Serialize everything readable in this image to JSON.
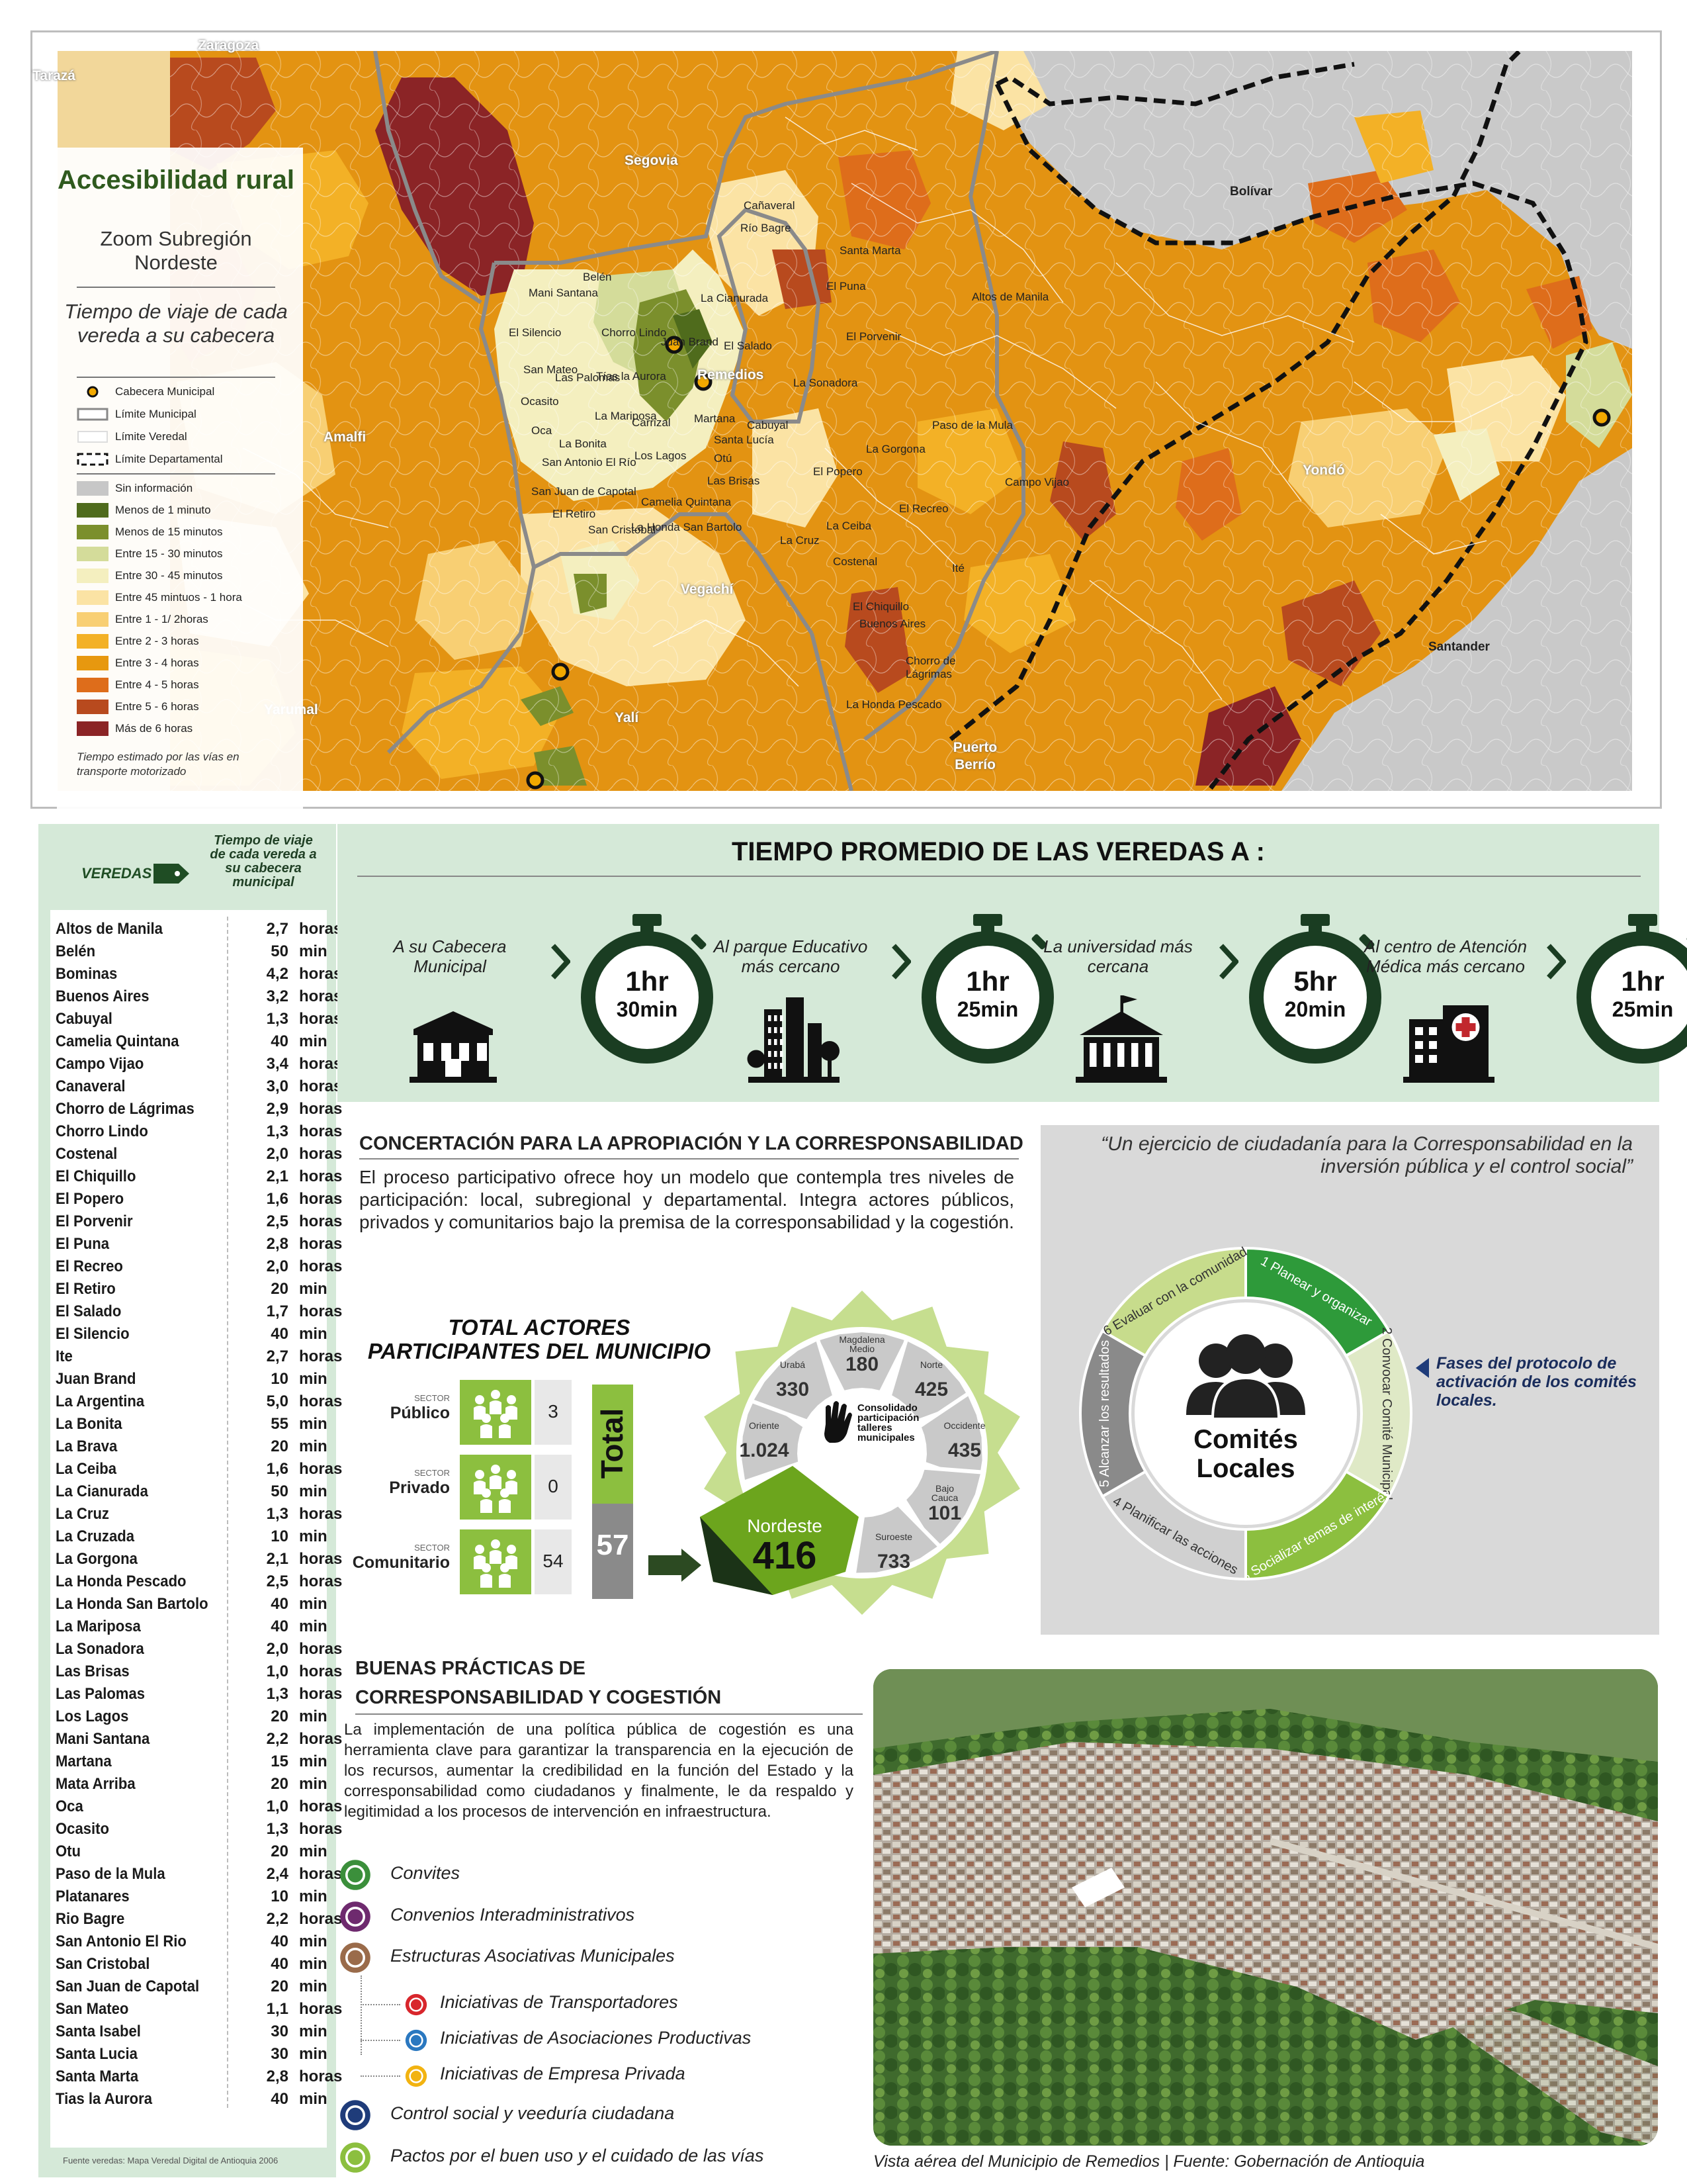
{
  "map": {
    "title": "Accesibilidad rural",
    "subtitle": "Zoom Subregión Nordeste",
    "legend_title": "Tiempo de viaje de cada vereda a su cabecera",
    "symbols": [
      {
        "icon": "cabecera-icon",
        "label": "Cabecera Municipal"
      },
      {
        "icon": "municipal-limit-icon",
        "label": "Límite Municipal"
      },
      {
        "icon": "veredal-limit-icon",
        "label": "Límite Veredal"
      },
      {
        "icon": "departmental-limit-icon",
        "label": "Límite Departamental"
      }
    ],
    "classes": [
      {
        "label": "Sin información",
        "color": "#c7c7c7"
      },
      {
        "label": "Menos de 1 minuto",
        "color": "#4f6b1c"
      },
      {
        "label": "Menos de 15 minutos",
        "color": "#7b8f2c"
      },
      {
        "label": "Entre 15 - 30 minutos",
        "color": "#d4dc9a"
      },
      {
        "label": "Entre 30 - 45 minutos",
        "color": "#f4efbf"
      },
      {
        "label": "Entre 45 mintuos - 1 hora",
        "color": "#fbe3a4"
      },
      {
        "label": "Entre 1 - 1/ 2horas",
        "color": "#f8cf73"
      },
      {
        "label": "Entre 2 - 3 horas",
        "color": "#f3b126"
      },
      {
        "label": "Entre 3 - 4 horas",
        "color": "#e7980f"
      },
      {
        "label": "Entre 4 - 5 horas",
        "color": "#de6d1b"
      },
      {
        "label": "Entre 5 - 6 horas",
        "color": "#b84a1e"
      },
      {
        "label": "Más de 6 horas",
        "color": "#8b2426"
      }
    ],
    "note": "Tiempo estimado por las vías en transporte motorizado",
    "places_big": [
      "Bolívar",
      "Santander",
      "Yondó",
      "Puerto Berrío",
      "Vegachí",
      "Yalí",
      "Remedios",
      "Segovia",
      "Amalfi",
      "Zaragoza",
      "Tarazá",
      "Yarumal"
    ],
    "places_small": [
      "Mani Santana",
      "Belén",
      "Cañaveral",
      "Río Bagre",
      "Santa Marta",
      "El Puna",
      "La Cianurada",
      "Altos de Manila",
      "El Porvenir",
      "El Salado",
      "La Sonadora",
      "Cabuyal",
      "Paso de la Mula",
      "La Gorgona",
      "El Popero",
      "El Recreo",
      "Campo Vijao",
      "La Ceiba",
      "La Cruz",
      "Costenal",
      "Ité",
      "El Chiquillo",
      "Buenos Aires",
      "Chorro de Lágrimas",
      "La Honda Pescado",
      "El Silencio",
      "San Mateo",
      "Ocasito",
      "Oca",
      "La Bonita",
      "San Antonio El Río",
      "San Juan de Capotal",
      "El Retiro",
      "Las Brisas",
      "Los Lagos",
      "Martana",
      "La Mariposa",
      "Carrizal",
      "Chorro Lindo",
      "Tías la Aurora",
      "Santa Lucía",
      "Las Palomas",
      "Juan Brand",
      "Otú",
      "Camelia Quintana",
      "La Honda San Bartolo",
      "San Cristóbal"
    ]
  },
  "veredas": {
    "header": "VEREDAS",
    "column_title": "Tiempo de viaje de cada vereda a su cabecera municipal",
    "rows": [
      {
        "name": "Altos de Manila",
        "value": "2,7",
        "unit": "horas"
      },
      {
        "name": "Belén",
        "value": "50",
        "unit": "min"
      },
      {
        "name": "Bominas",
        "value": "4,2",
        "unit": "horas"
      },
      {
        "name": "Buenos Aires",
        "value": "3,2",
        "unit": "horas"
      },
      {
        "name": "Cabuyal",
        "value": "1,3",
        "unit": "horas"
      },
      {
        "name": "Camelia Quintana",
        "value": "40",
        "unit": "min"
      },
      {
        "name": "Campo Vijao",
        "value": "3,4",
        "unit": "horas"
      },
      {
        "name": "Canaveral",
        "value": "3,0",
        "unit": "horas"
      },
      {
        "name": "Chorro de Lágrimas",
        "value": "2,9",
        "unit": "horas"
      },
      {
        "name": "Chorro Lindo",
        "value": "1,3",
        "unit": "horas"
      },
      {
        "name": "Costenal",
        "value": "2,0",
        "unit": "horas"
      },
      {
        "name": "El Chiquillo",
        "value": "2,1",
        "unit": "horas"
      },
      {
        "name": "El Popero",
        "value": "1,6",
        "unit": "horas"
      },
      {
        "name": "El Porvenir",
        "value": "2,5",
        "unit": "horas"
      },
      {
        "name": "El Puna",
        "value": "2,8",
        "unit": "horas"
      },
      {
        "name": "El Recreo",
        "value": "2,0",
        "unit": "horas"
      },
      {
        "name": "El Retiro",
        "value": "20",
        "unit": "min"
      },
      {
        "name": "El Salado",
        "value": "1,7",
        "unit": "horas"
      },
      {
        "name": "El Silencio",
        "value": "40",
        "unit": "min"
      },
      {
        "name": "Ite",
        "value": "2,7",
        "unit": "horas"
      },
      {
        "name": "Juan Brand",
        "value": "10",
        "unit": "min"
      },
      {
        "name": "La Argentina",
        "value": "5,0",
        "unit": "horas"
      },
      {
        "name": "La Bonita",
        "value": "55",
        "unit": "min"
      },
      {
        "name": "La Brava",
        "value": "20",
        "unit": "min"
      },
      {
        "name": "La Ceiba",
        "value": "1,6",
        "unit": "horas"
      },
      {
        "name": "La Cianurada",
        "value": "50",
        "unit": "min"
      },
      {
        "name": "La Cruz",
        "value": "1,3",
        "unit": "horas"
      },
      {
        "name": "La Cruzada",
        "value": "10",
        "unit": "min"
      },
      {
        "name": "La Gorgona",
        "value": "2,1",
        "unit": "horas"
      },
      {
        "name": "La Honda Pescado",
        "value": "2,5",
        "unit": "horas"
      },
      {
        "name": "La Honda San Bartolo",
        "value": "40",
        "unit": "min"
      },
      {
        "name": "La Mariposa",
        "value": "40",
        "unit": "min"
      },
      {
        "name": "La Sonadora",
        "value": "2,0",
        "unit": "horas"
      },
      {
        "name": "Las Brisas",
        "value": "1,0",
        "unit": "horas"
      },
      {
        "name": "Las Palomas",
        "value": "1,3",
        "unit": "horas"
      },
      {
        "name": "Los Lagos",
        "value": "20",
        "unit": "min"
      },
      {
        "name": "Mani Santana",
        "value": "2,2",
        "unit": "horas"
      },
      {
        "name": "Martana",
        "value": "15",
        "unit": "min"
      },
      {
        "name": "Mata Arriba",
        "value": "20",
        "unit": "min"
      },
      {
        "name": "Oca",
        "value": "1,0",
        "unit": "horas"
      },
      {
        "name": "Ocasito",
        "value": "1,3",
        "unit": "horas"
      },
      {
        "name": "Otu",
        "value": "20",
        "unit": "min"
      },
      {
        "name": "Paso de la Mula",
        "value": "2,4",
        "unit": "horas"
      },
      {
        "name": "Platanares",
        "value": "10",
        "unit": "min"
      },
      {
        "name": "Rio Bagre",
        "value": "2,2",
        "unit": "horas"
      },
      {
        "name": "San Antonio El Rio",
        "value": "40",
        "unit": "min"
      },
      {
        "name": "San Cristobal",
        "value": "40",
        "unit": "min"
      },
      {
        "name": "San Juan de Capotal",
        "value": "20",
        "unit": "min"
      },
      {
        "name": "San Mateo",
        "value": "1,1",
        "unit": "horas"
      },
      {
        "name": "Santa Isabel",
        "value": "30",
        "unit": "min"
      },
      {
        "name": "Santa Lucia",
        "value": "30",
        "unit": "min"
      },
      {
        "name": "Santa Marta",
        "value": "2,8",
        "unit": "horas"
      },
      {
        "name": "Tias la Aurora",
        "value": "40",
        "unit": "min"
      }
    ],
    "source": "Fuente veredas: Mapa Veredal Digital de Antioquia 2006"
  },
  "tiempo": {
    "title": "TIEMPO PROMEDIO DE LAS VEREDAS A :",
    "stages": [
      {
        "label": "A su Cabecera Municipal",
        "icon": "town-hall-icon",
        "top": "1hr",
        "bottom": "30min"
      },
      {
        "label": "Al parque Educativo más cercano",
        "icon": "city-park-icon",
        "top": "1hr",
        "bottom": "25min"
      },
      {
        "label": "La universidad más cercana",
        "icon": "university-icon",
        "top": "5hr",
        "bottom": "20min"
      },
      {
        "label": "Al centro de Atención Médica más cercano",
        "icon": "hospital-icon",
        "top": "1hr",
        "bottom": "25min"
      }
    ]
  },
  "concertacion": {
    "title": "CONCERTACIÓN PARA LA APROPIACIÓN Y LA CORRESPONSABILIDAD",
    "text": "El proceso participativo ofrece hoy un modelo que contempla tres niveles de participación: local, subregional y departamental. Integra actores públicos, privados y comunitarios bajo la premisa de la corresponsabilidad y la cogestión.",
    "actors_title": "TOTAL ACTORES PARTICIPANTES DEL MUNICIPIO",
    "sector_small": "SECTOR",
    "sectors": [
      {
        "name": "Público",
        "value": "3"
      },
      {
        "name": "Privado",
        "value": "0"
      },
      {
        "name": "Comunitario",
        "value": "54"
      }
    ],
    "total_label": "Total",
    "total_value": "57",
    "consolidado_label": "Consolidado participación talleres municipales",
    "subregions": [
      {
        "name": "Magdalena Medio",
        "value": "180"
      },
      {
        "name": "Norte",
        "value": "425"
      },
      {
        "name": "Occidente",
        "value": "435"
      },
      {
        "name": "Bajo Cauca",
        "value": "101"
      },
      {
        "name": "Suroeste",
        "value": "733"
      },
      {
        "name": "Oriente",
        "value": "1.024"
      },
      {
        "name": "Urabá",
        "value": "330"
      }
    ],
    "highlight": {
      "name": "Nordeste",
      "value": "416"
    }
  },
  "comites": {
    "quote": "“Un ejercicio de ciudadanía  para la Corresponsabilidad en la inversión pública y  el control social”",
    "center": "Comités Locales",
    "phases": [
      {
        "num": "1",
        "label": "Planear y organizar",
        "color": "#2e9a3a"
      },
      {
        "num": "2",
        "label": "Convocar Comité Municipal",
        "color": "#dfe9c6"
      },
      {
        "num": "3",
        "label": "Socializar temas de interés",
        "color": "#8cbf3f"
      },
      {
        "num": "4",
        "label": "Planificar las acciones",
        "color": "#d0d0d0"
      },
      {
        "num": "5",
        "label": "Alcanzar los resultados",
        "color": "#8a8a8a"
      },
      {
        "num": "6",
        "label": "Evaluar con la comunidad",
        "color": "#c7dc8c"
      }
    ],
    "note": "Fases del protocolo de activación de los comités locales."
  },
  "buenas": {
    "title_l1": "BUENAS PRÁCTICAS DE",
    "title_l2": "CORRESPONSABILIDAD Y COGESTIÓN",
    "text": "La implementación de una política pública de cogestión es una herramienta clave para garantizar la transparencia en la ejecución de los recursos, aumentar la credibilidad en la función del Estado y la corresponsabilidad como ciudadanos y finalmente, le da respaldo y legitimidad a los procesos de intervención en infraestructura.",
    "items": [
      {
        "label": "Convites",
        "icon": "thumbs-up-icon",
        "color": "#3b8f3b"
      },
      {
        "label": "Convenios Interadministrativos",
        "icon": "document-icon",
        "color": "#6e2a6e"
      },
      {
        "label": "Estructuras Asociativas Municipales",
        "icon": "people-group-icon",
        "color": "#9a6b4a"
      }
    ],
    "subitems": [
      {
        "label": "Iniciativas de Transportadores",
        "icon": "bus-icon",
        "color": "#d8262c"
      },
      {
        "label": "Iniciativas de Asociaciones Productivas",
        "icon": "gears-icon",
        "color": "#2a78c0"
      },
      {
        "label": "Iniciativas de Empresa Privada",
        "icon": "factory-icon",
        "color": "#f2b311"
      }
    ],
    "items2": [
      {
        "label": "Control social y veeduría ciudadana",
        "icon": "eye-icon",
        "color": "#1f3c7a"
      },
      {
        "label": "Pactos por el buen uso y el cuidado de las vías",
        "icon": "handshake-icon",
        "color": "#8cbf3f"
      }
    ],
    "photo_caption": "Vista aérea del Municipio de Remedios | Fuente: Gobernación de Antioquia"
  }
}
